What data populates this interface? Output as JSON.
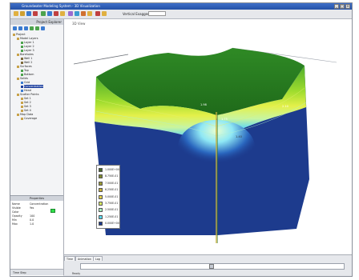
{
  "window": {
    "title": "Groundwater Modeling System - 3D Visualization"
  },
  "toolbar": {
    "combo_label": "Vertical Exaggeration",
    "combo_value": ""
  },
  "tree": {
    "header": "Project Explorer",
    "items": [
      {
        "label": "Project",
        "indent": 0,
        "color": "#c8a24a"
      },
      {
        "label": "Model Layers",
        "indent": 1,
        "color": "#c8a24a"
      },
      {
        "label": "Layer 1",
        "indent": 2,
        "color": "#4da34d"
      },
      {
        "label": "Layer 2",
        "indent": 2,
        "color": "#4da34d"
      },
      {
        "label": "Layer 3",
        "indent": 2,
        "color": "#4da34d"
      },
      {
        "label": "Boreholes",
        "indent": 1,
        "color": "#c8a24a"
      },
      {
        "label": "Well 1",
        "indent": 2,
        "color": "#7d6a3a"
      },
      {
        "label": "Well 2",
        "indent": 2,
        "color": "#7d6a3a"
      },
      {
        "label": "Surfaces",
        "indent": 1,
        "color": "#c8a24a"
      },
      {
        "label": "Top",
        "indent": 2,
        "color": "#4da34d"
      },
      {
        "label": "Bottom",
        "indent": 2,
        "color": "#4da34d"
      },
      {
        "label": "Solids",
        "indent": 1,
        "color": "#c8a24a"
      },
      {
        "label": "Grid",
        "indent": 2,
        "color": "#3b7bd0"
      },
      {
        "label": "Concentration",
        "indent": 2,
        "color": "#1c3f9e",
        "selected": true
      },
      {
        "label": "Head",
        "indent": 2,
        "color": "#3b7bd0"
      },
      {
        "label": "Scatter Points",
        "indent": 1,
        "color": "#c8a24a"
      },
      {
        "label": "Set 1",
        "indent": 2,
        "color": "#c8a24a"
      },
      {
        "label": "Set 2",
        "indent": 2,
        "color": "#c8a24a"
      },
      {
        "label": "Set 3",
        "indent": 2,
        "color": "#c8a24a"
      },
      {
        "label": "Set 4",
        "indent": 2,
        "color": "#c8a24a"
      },
      {
        "label": "Map Data",
        "indent": 1,
        "color": "#c8a24a"
      },
      {
        "label": "Coverage",
        "indent": 2,
        "color": "#c8a24a"
      }
    ]
  },
  "properties": {
    "header": "Properties",
    "rows": [
      {
        "label": "Name",
        "value": "Concentration"
      },
      {
        "label": "Visible",
        "value": "Yes"
      },
      {
        "label": "Color",
        "value": ""
      },
      {
        "label": "Opacity",
        "value": "100"
      },
      {
        "label": "Min",
        "value": "0.0"
      },
      {
        "label": "Max",
        "value": "1.0"
      }
    ],
    "swatch_color": "#2fe04a"
  },
  "left_footer": "Time Step",
  "view": {
    "tab_label": "3D View"
  },
  "legend": {
    "entries": [
      {
        "color": "#4a6a2c",
        "label": "1.000E+00"
      },
      {
        "color": "#7f8a2e",
        "label": "8.750E-01"
      },
      {
        "color": "#9c9a34",
        "label": "7.500E-01"
      },
      {
        "color": "#c9b23a",
        "label": "6.250E-01"
      },
      {
        "color": "#e3d24a",
        "label": "5.000E-01"
      },
      {
        "color": "#d8e860",
        "label": "3.750E-01"
      },
      {
        "color": "#a8f0c0",
        "label": "2.500E-01"
      },
      {
        "color": "#5ad8f0",
        "label": "1.250E-01"
      },
      {
        "color": "#1c3a8c",
        "label": "0.000E+00"
      }
    ]
  },
  "bottom": {
    "tabs": [
      "Time",
      "Animation",
      "Log"
    ],
    "status": "Ready"
  }
}
